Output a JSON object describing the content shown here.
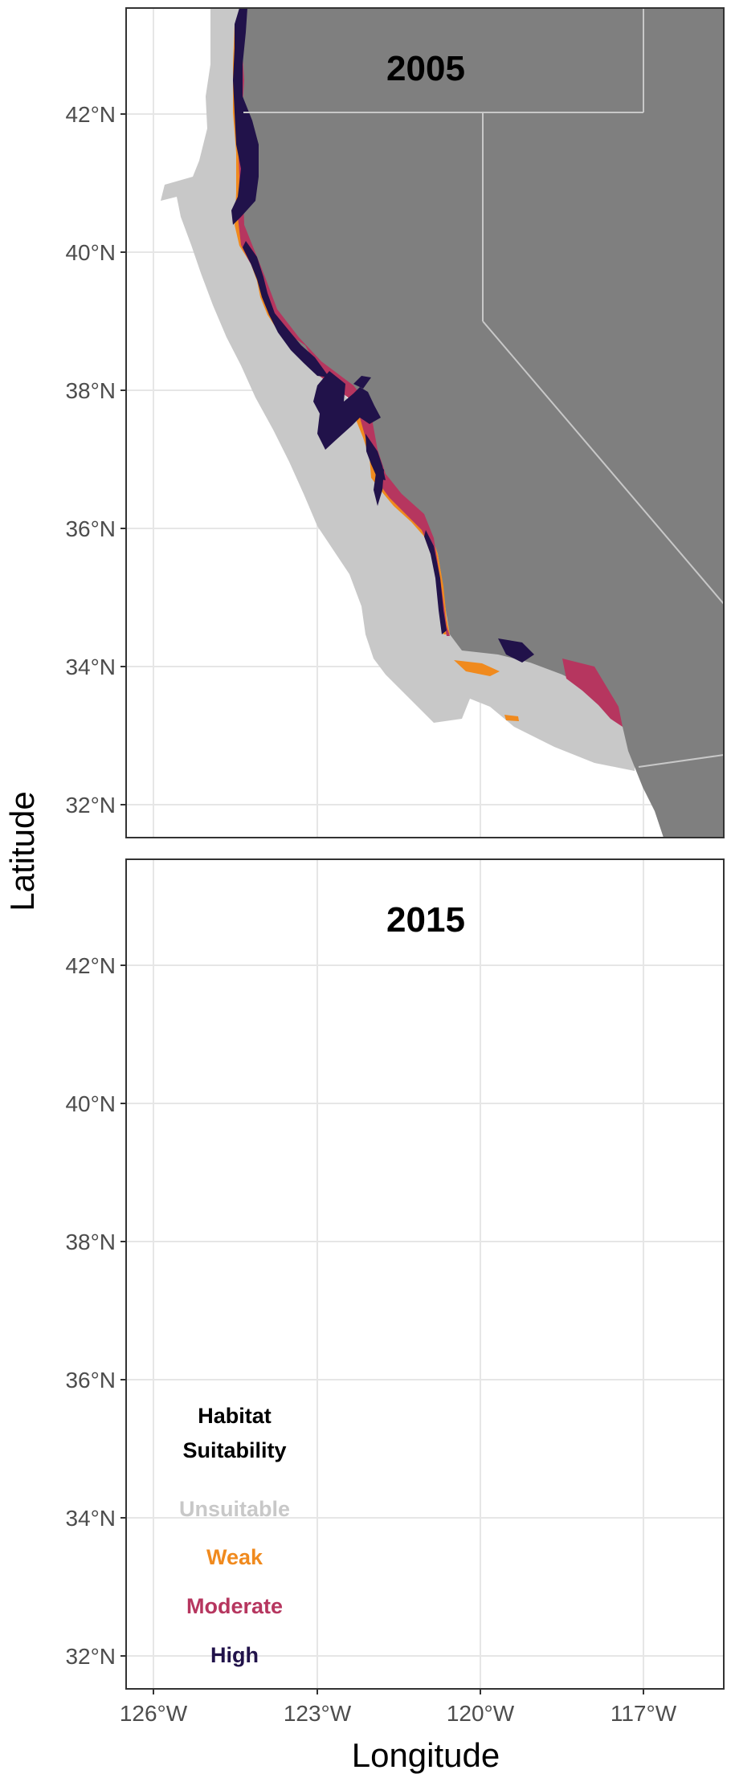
{
  "figure": {
    "xlabel": "Longitude",
    "ylabel": "Latitude",
    "x_ticks": [
      "126°W",
      "123°W",
      "120°W",
      "117°W"
    ],
    "y_ticks": [
      "42°N",
      "40°N",
      "38°N",
      "36°N",
      "34°N",
      "32°N"
    ]
  },
  "panels": [
    {
      "title": "2005"
    },
    {
      "title": "2015"
    }
  ],
  "legend": {
    "title_line1": "Habitat",
    "title_line2": "Suitability",
    "items": [
      {
        "label": "Unsuitable",
        "color": "#c8c8c8"
      },
      {
        "label": "Weak",
        "color": "#f08a1e"
      },
      {
        "label": "Moderate",
        "color": "#b6365f"
      },
      {
        "label": "High",
        "color": "#21124a"
      }
    ]
  },
  "colors": {
    "land": "#7f7f7f",
    "ocean": "#ffffff",
    "grid": "#e6e6e6",
    "border": "#c8c8c8"
  }
}
